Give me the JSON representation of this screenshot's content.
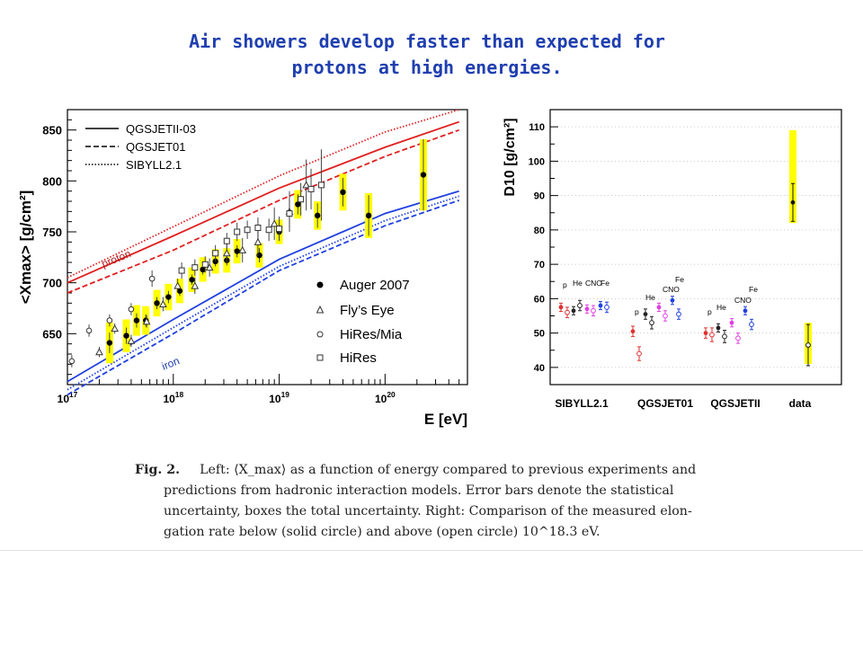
{
  "slide": {
    "title_line1": "Air showers develop faster than expected for",
    "title_line2": "protons at high energies."
  },
  "caption": {
    "label": "Fig. 2.",
    "lines": [
      "Left: ⟨X_max⟩ as a function of energy compared to previous experiments and",
      "predictions from hadronic interaction models.  Error bars denote the statistical",
      "uncertainty, boxes the total uncertainty.  Right: Comparison of the measured elon-",
      "gation rate below (solid circle) and above (open circle) 10^18.3 eV."
    ]
  },
  "colors": {
    "title": "#1f3fb0",
    "proton_band": "#e02020",
    "iron_band": "#2040e0",
    "syst_box": "#ffff00"
  },
  "chart_data": [
    {
      "type": "scatter",
      "ylabel": "<Xmax> [g/cm²]",
      "xlabel": "E [eV]",
      "x_scale": "log",
      "xlim": [
        1e+17,
        6e+20
      ],
      "ylim": [
        600,
        870
      ],
      "x_tick_labels": [
        "10^17",
        "10^18",
        "10^19",
        "10^20"
      ],
      "y_ticks": [
        650,
        700,
        750,
        800,
        850
      ],
      "model_legend": [
        "QGSJETII-03",
        "QGSJET01",
        "SIBYLL2.1"
      ],
      "band_labels": {
        "proton": "proton",
        "iron": "iron"
      },
      "models": [
        {
          "name": "QGSJETII-03",
          "style": "solid",
          "proton": {
            "x": [
              1e+17,
              1e+18,
              1e+19,
              1e+20,
              5e+20
            ],
            "y": [
              700,
              746,
              793,
              833,
              858
            ]
          },
          "iron": {
            "x": [
              1e+17,
              1e+18,
              1e+19,
              1e+20,
              5e+20
            ],
            "y": [
              603,
              664,
              723,
              768,
              790
            ]
          }
        },
        {
          "name": "QGSJET01",
          "style": "dashed",
          "proton": {
            "x": [
              1e+17,
              1e+18,
              1e+19,
              1e+20,
              5e+20
            ],
            "y": [
              690,
              732,
              781,
              824,
              850
            ]
          },
          "iron": {
            "x": [
              1e+17,
              1e+18,
              1e+19,
              1e+20,
              5e+20
            ],
            "y": [
              590,
              650,
              712,
              756,
              781
            ]
          }
        },
        {
          "name": "SIBYLL2.1",
          "style": "dotted",
          "proton": {
            "x": [
              1e+17,
              1e+18,
              1e+19,
              1e+20,
              5e+20
            ],
            "y": [
              705,
              755,
              805,
              848,
              870
            ]
          },
          "iron": {
            "x": [
              1e+17,
              1e+18,
              1e+19,
              1e+20,
              5e+20
            ],
            "y": [
              595,
              656,
              716,
              761,
              785
            ]
          }
        }
      ],
      "series": [
        {
          "name": "Auger 2007",
          "marker": "filled-circle",
          "x": [
            2.5e+17,
            3.6e+17,
            4.5e+17,
            5.5e+17,
            7e+17,
            9e+17,
            1.15e+18,
            1.5e+18,
            1.9e+18,
            2.5e+18,
            3.2e+18,
            4e+18,
            6.5e+18,
            1e+19,
            1.5e+19,
            2.3e+19,
            4e+19,
            7e+19,
            2.3e+20
          ],
          "y": [
            641,
            648,
            663,
            663,
            680,
            686,
            692,
            703,
            713,
            721,
            722,
            731,
            727,
            750,
            777,
            766,
            789,
            766,
            806
          ],
          "err": [
            10,
            8,
            7,
            6,
            6,
            6,
            5,
            5,
            5,
            5,
            5,
            6,
            7,
            8,
            10,
            12,
            14,
            20,
            35
          ],
          "sys": [
            20,
            16,
            15,
            14,
            13,
            13,
            12,
            12,
            12,
            12,
            12,
            12,
            12,
            12,
            14,
            14,
            18,
            22,
            35
          ]
        },
        {
          "name": "Fly’s Eye",
          "marker": "open-triangle",
          "x": [
            2e+17,
            2.8e+17,
            4e+17,
            5.6e+17,
            8e+17,
            1.1e+18,
            1.6e+18,
            2.2e+18,
            3.2e+18,
            4.5e+18,
            6.3e+18,
            9e+18,
            1.25e+19,
            1.8e+19
          ],
          "y": [
            632,
            655,
            643,
            662,
            679,
            697,
            697,
            715,
            729,
            732,
            740,
            758,
            770,
            796
          ],
          "err": [
            5,
            5,
            6,
            6,
            7,
            7,
            8,
            9,
            10,
            12,
            14,
            16,
            20,
            25
          ]
        },
        {
          "name": "HiRes/Mia",
          "marker": "open-circle",
          "x": [
            1.1e+17,
            1.6e+17,
            2.5e+17,
            4e+17,
            6.3e+17
          ],
          "y": [
            623,
            653,
            663,
            674,
            704
          ],
          "err": [
            6,
            6,
            6,
            6,
            8
          ]
        },
        {
          "name": "HiRes",
          "marker": "open-square",
          "x": [
            1.2e+18,
            1.6e+18,
            2e+18,
            2.5e+18,
            3.2e+18,
            4e+18,
            5e+18,
            6.3e+18,
            8e+18,
            1e+19,
            1.25e+19,
            1.6e+19,
            2e+19,
            2.5e+19
          ],
          "y": [
            712,
            715,
            718,
            729,
            741,
            750,
            752,
            754,
            752,
            753,
            768,
            782,
            792,
            796
          ],
          "err": [
            8,
            8,
            8,
            8,
            8,
            9,
            9,
            10,
            11,
            12,
            14,
            16,
            20,
            35
          ]
        }
      ]
    },
    {
      "type": "scatter",
      "ylabel": "D10 [g/cm²]",
      "ylim": [
        35,
        115
      ],
      "y_ticks": [
        40,
        50,
        60,
        70,
        80,
        90,
        100,
        110
      ],
      "categories": [
        "SIBYLL2.1",
        "QGSJET01",
        "QGSJETII",
        "data"
      ],
      "composition_labels": [
        "p",
        "He",
        "CNO",
        "Fe"
      ],
      "series": [
        {
          "name": "below 10^18.3 eV (solid circle)",
          "marker": "filled-circle",
          "points": [
            {
              "group": "SIBYLL2.1",
              "comp": "p",
              "y": 57.5,
              "err": 1.2,
              "color": "#e03030"
            },
            {
              "group": "SIBYLL2.1",
              "comp": "He",
              "y": 56.5,
              "err": 1.2,
              "color": "#222222"
            },
            {
              "group": "SIBYLL2.1",
              "comp": "CNO",
              "y": 57.0,
              "err": 1.2,
              "color": "#e040e0"
            },
            {
              "group": "SIBYLL2.1",
              "comp": "Fe",
              "y": 58.0,
              "err": 1.2,
              "color": "#2040e0"
            },
            {
              "group": "QGSJET01",
              "comp": "p",
              "y": 50.5,
              "err": 1.5,
              "color": "#e03030"
            },
            {
              "group": "QGSJET01",
              "comp": "He",
              "y": 55.5,
              "err": 1.5,
              "color": "#222222"
            },
            {
              "group": "QGSJET01",
              "comp": "CNO",
              "y": 57.5,
              "err": 1.2,
              "color": "#e040e0"
            },
            {
              "group": "QGSJET01",
              "comp": "Fe",
              "y": 59.5,
              "err": 1.2,
              "color": "#2040e0"
            },
            {
              "group": "QGSJETII",
              "comp": "p",
              "y": 50.0,
              "err": 1.5,
              "color": "#e03030"
            },
            {
              "group": "QGSJETII",
              "comp": "He",
              "y": 51.5,
              "err": 1.2,
              "color": "#222222"
            },
            {
              "group": "QGSJETII",
              "comp": "CNO",
              "y": 53.0,
              "err": 1.2,
              "color": "#e040e0"
            },
            {
              "group": "QGSJETII",
              "comp": "Fe",
              "y": 56.5,
              "err": 1.2,
              "color": "#2040e0"
            },
            {
              "group": "data",
              "comp": "",
              "y": 88,
              "err": 5.5,
              "sys": [
                82,
                109
              ],
              "color": "#111111"
            }
          ]
        },
        {
          "name": "above 10^18.3 eV (open circle)",
          "marker": "open-circle",
          "points": [
            {
              "group": "SIBYLL2.1",
              "comp": "p",
              "y": 56.0,
              "err": 1.5,
              "color": "#e03030"
            },
            {
              "group": "SIBYLL2.1",
              "comp": "He",
              "y": 58.0,
              "err": 1.5,
              "color": "#222222"
            },
            {
              "group": "SIBYLL2.1",
              "comp": "CNO",
              "y": 56.5,
              "err": 1.5,
              "color": "#e040e0"
            },
            {
              "group": "SIBYLL2.1",
              "comp": "Fe",
              "y": 57.5,
              "err": 1.5,
              "color": "#2040e0"
            },
            {
              "group": "QGSJET01",
              "comp": "p",
              "y": 44.0,
              "err": 2.0,
              "color": "#e03030"
            },
            {
              "group": "QGSJET01",
              "comp": "He",
              "y": 53.0,
              "err": 1.8,
              "color": "#222222"
            },
            {
              "group": "QGSJET01",
              "comp": "CNO",
              "y": 55.0,
              "err": 1.5,
              "color": "#e040e0"
            },
            {
              "group": "QGSJET01",
              "comp": "Fe",
              "y": 55.5,
              "err": 1.5,
              "color": "#2040e0"
            },
            {
              "group": "QGSJETII",
              "comp": "p",
              "y": 49.5,
              "err": 2.0,
              "color": "#e03030"
            },
            {
              "group": "QGSJETII",
              "comp": "He",
              "y": 49.0,
              "err": 1.8,
              "color": "#222222"
            },
            {
              "group": "QGSJETII",
              "comp": "CNO",
              "y": 48.5,
              "err": 1.5,
              "color": "#e040e0"
            },
            {
              "group": "QGSJETII",
              "comp": "Fe",
              "y": 52.5,
              "err": 1.5,
              "color": "#2040e0"
            },
            {
              "group": "data",
              "comp": "",
              "y": 46.5,
              "err": 6,
              "sys": [
                41,
                53
              ],
              "color": "#111111"
            }
          ]
        }
      ]
    }
  ]
}
